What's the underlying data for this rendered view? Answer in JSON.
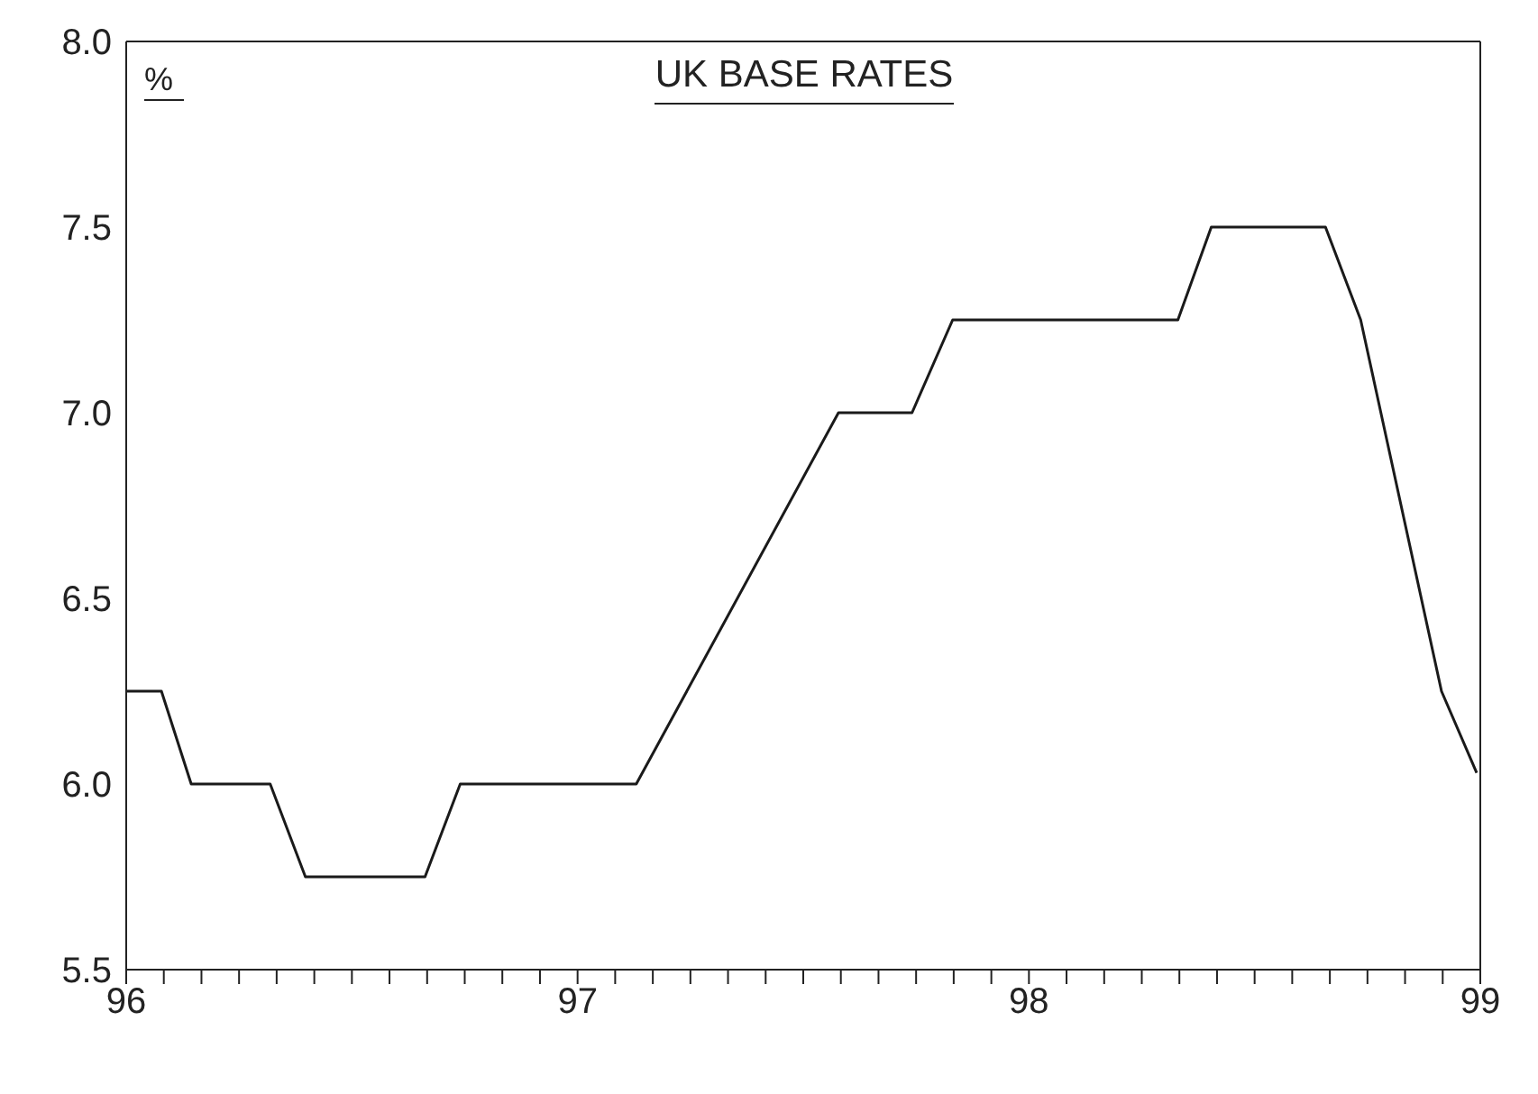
{
  "chart_data": {
    "type": "line",
    "title": "UK BASE RATES",
    "ylabel": "%",
    "x": [
      96,
      96.078,
      96.144,
      96.319,
      96.397,
      96.662,
      96.74,
      97.13,
      97.578,
      97.741,
      97.831,
      98.33,
      98.404,
      98.657,
      98.735,
      98.914,
      98.992
    ],
    "series": [
      {
        "color": "#1a1a1a",
        "values": [
          6.25,
          6.25,
          6.0,
          6.0,
          5.75,
          5.75,
          6.0,
          6.0,
          7.0,
          7.0,
          7.25,
          7.25,
          7.5,
          7.5,
          7.25,
          6.25,
          6.03
        ]
      }
    ],
    "xlim": [
      96,
      99
    ],
    "xticks": [
      96,
      {
        "value": 96.0833,
        "label": null
      },
      {
        "value": 96.1667,
        "label": null
      },
      {
        "value": 96.25,
        "label": null
      },
      {
        "value": 96.3333,
        "label": null
      },
      {
        "value": 96.4167,
        "label": null
      },
      {
        "value": 96.5,
        "label": null
      },
      {
        "value": 96.5833,
        "label": null
      },
      {
        "value": 96.6667,
        "label": null
      },
      {
        "value": 96.75,
        "label": null
      },
      {
        "value": 96.8333,
        "label": null
      },
      {
        "value": 96.9167,
        "label": null
      },
      97,
      {
        "value": 97.0833,
        "label": null
      },
      {
        "value": 97.1667,
        "label": null
      },
      {
        "value": 97.25,
        "label": null
      },
      {
        "value": 97.3333,
        "label": null
      },
      {
        "value": 97.4167,
        "label": null
      },
      {
        "value": 97.5,
        "label": null
      },
      {
        "value": 97.5833,
        "label": null
      },
      {
        "value": 97.6667,
        "label": null
      },
      {
        "value": 97.75,
        "label": null
      },
      {
        "value": 97.8333,
        "label": null
      },
      {
        "value": 97.9167,
        "label": null
      },
      98,
      {
        "value": 98.0833,
        "label": null
      },
      {
        "value": 98.1667,
        "label": null
      },
      {
        "value": 98.25,
        "label": null
      },
      {
        "value": 98.3333,
        "label": null
      },
      {
        "value": 98.4167,
        "label": null
      },
      {
        "value": 98.5,
        "label": null
      },
      {
        "value": 98.5833,
        "label": null
      },
      {
        "value": 98.6667,
        "label": null
      },
      {
        "value": 98.75,
        "label": null
      },
      {
        "value": 98.8333,
        "label": null
      },
      {
        "value": 98.9167,
        "label": null
      },
      99
    ],
    "ylim": [
      5.5,
      8.0
    ],
    "yticks": [
      {
        "value": 5.5,
        "label": "5.5"
      },
      {
        "value": 6.0,
        "label": "6.0"
      },
      {
        "value": 6.5,
        "label": "6.5"
      },
      {
        "value": 7.0,
        "label": "7.0"
      },
      {
        "value": 7.5,
        "label": "7.5"
      },
      {
        "value": 8.0,
        "label": "8.0"
      }
    ],
    "grid": false,
    "marker": "none",
    "line_style": "solid"
  }
}
